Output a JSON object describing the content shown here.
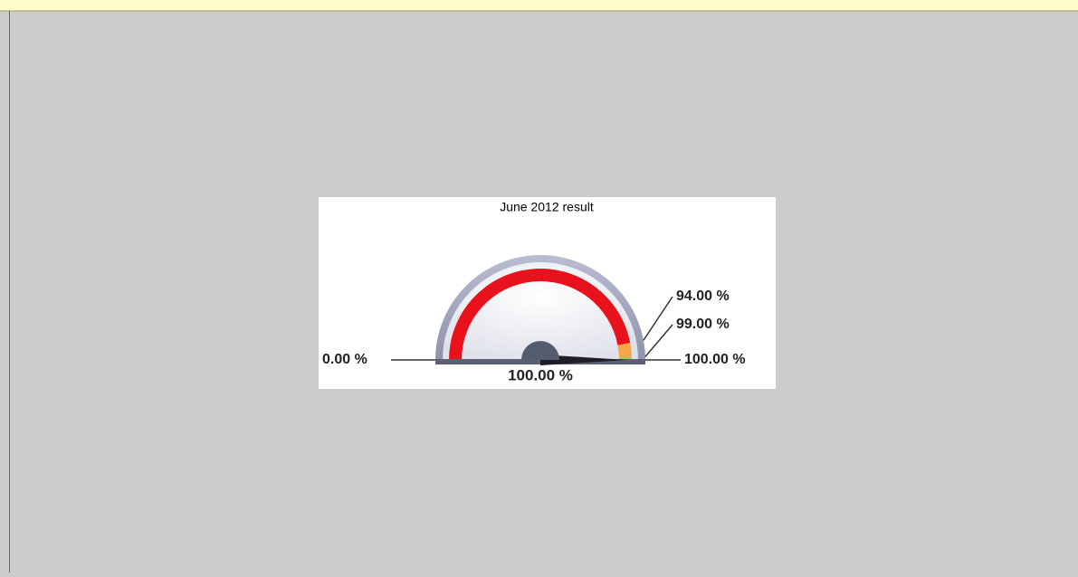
{
  "chart_data": {
    "type": "gauge",
    "title": "June 2012 result",
    "value": 100,
    "value_label": "100.00 %",
    "ylim": [
      0,
      100
    ],
    "yticks": [
      {
        "value": 0,
        "label": "0.00 %"
      },
      {
        "value": 94,
        "label": "94.00 %"
      },
      {
        "value": 99,
        "label": "99.00 %"
      },
      {
        "value": 100,
        "label": "100.00 %"
      }
    ],
    "bands": [
      {
        "from": 0,
        "to": 94,
        "color": "#e8121c"
      },
      {
        "from": 94,
        "to": 99,
        "color": "#f7a54a"
      },
      {
        "from": 99,
        "to": 100,
        "color": "#9ccf5a"
      }
    ]
  }
}
